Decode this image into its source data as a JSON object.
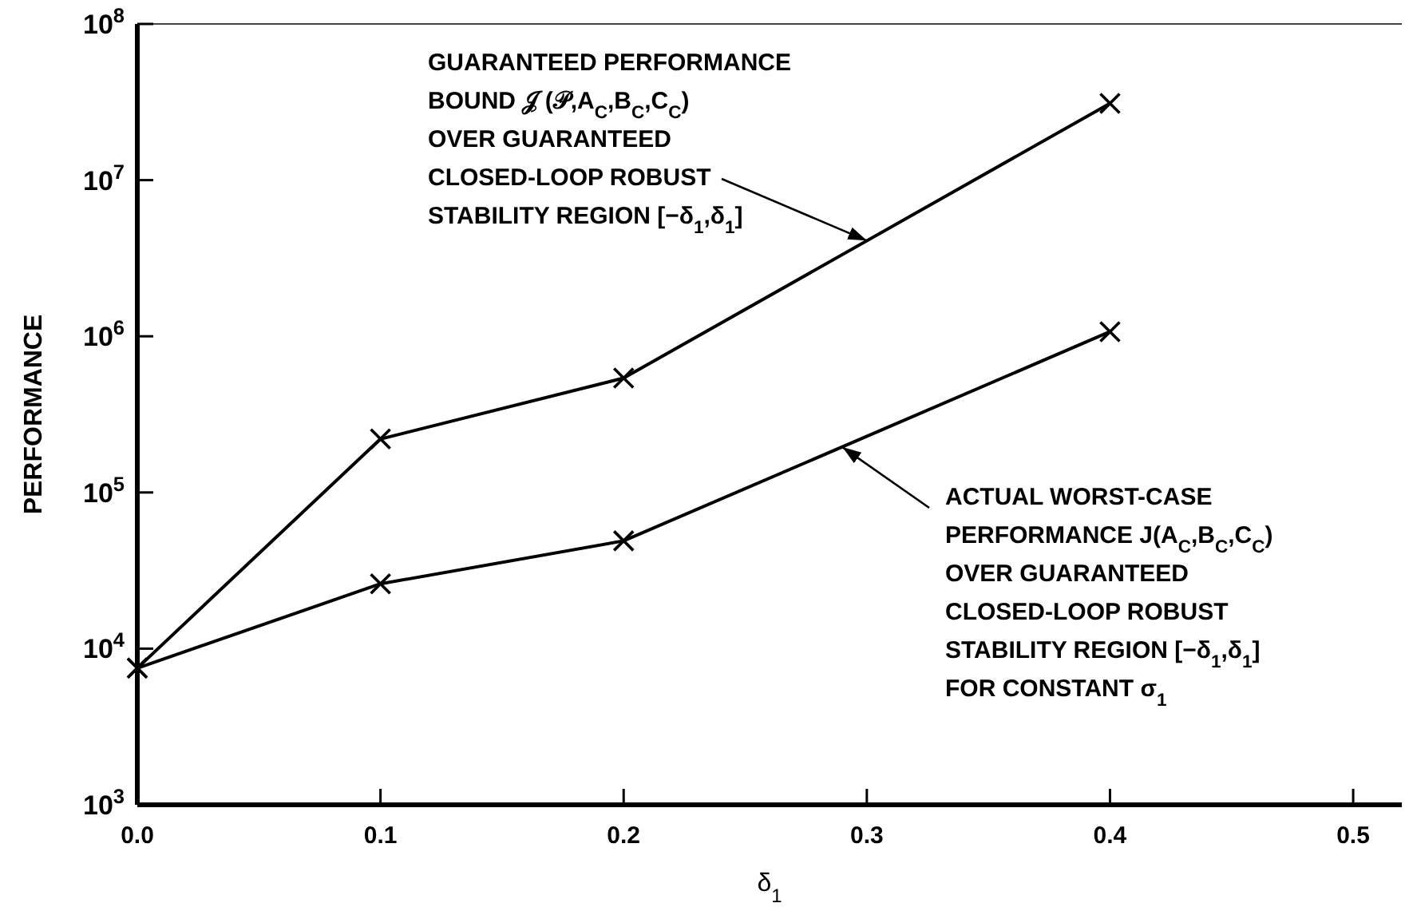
{
  "chart_data": {
    "type": "line",
    "xlabel": "δ$_{1}$",
    "ylabel": "PERFORMANCE",
    "log": "y",
    "marker": "cross",
    "line_style": "solid",
    "grid": false,
    "xlim": [
      0,
      0.52
    ],
    "xticks": [
      {
        "value": 0,
        "label": "0.0"
      },
      0.1,
      0.2,
      0.3,
      0.4,
      0.5
    ],
    "ylim": [
      1000,
      100000000
    ],
    "yticks": [
      {
        "value": 1000,
        "label": "10$^{3}$"
      },
      {
        "value": 10000,
        "label": "10$^{4}$"
      },
      {
        "value": 100000,
        "label": "10$^{5}$"
      },
      {
        "value": 1000000,
        "label": "10$^{6}$"
      },
      {
        "value": 10000000,
        "label": "10$^{7}$"
      },
      {
        "value": 100000000,
        "label": "10$^{8}$"
      }
    ],
    "x": [
      0,
      0.1,
      0.2,
      0.4
    ],
    "series": [
      {
        "color": "#000000",
        "values": [
          7500,
          220000,
          540000,
          31000000
        ]
      },
      {
        "color": "#000000",
        "values": [
          7500,
          26000,
          49000,
          1070000
        ]
      }
    ],
    "annotations": [
      "GUARANTEED PERFORMANCE",
      "BOUND 𝒥 (𝒫,A$_{C}$,B$_{C}$,C$_{C}$)",
      "OVER GUARANTEED",
      {
        "text": "CLOSED-LOOP ROBUST",
        "x": 0.3,
        "y": 4100000
      },
      "STABILITY REGION [−δ$_{1}$,δ$_{1}$]",
      {
        "text": "ACTUAL WORST-CASE",
        "x": 0.29,
        "y": 195000
      },
      "PERFORMANCE J(A$_{C}$,B$_{C}$,C$_{C}$)",
      "OVER GUARANTEED",
      "CLOSED-LOOP ROBUST",
      "STABILITY REGION [−δ$_{1}$,δ$_{1}$]",
      "FOR CONSTANT σ$_{1}$"
    ]
  }
}
